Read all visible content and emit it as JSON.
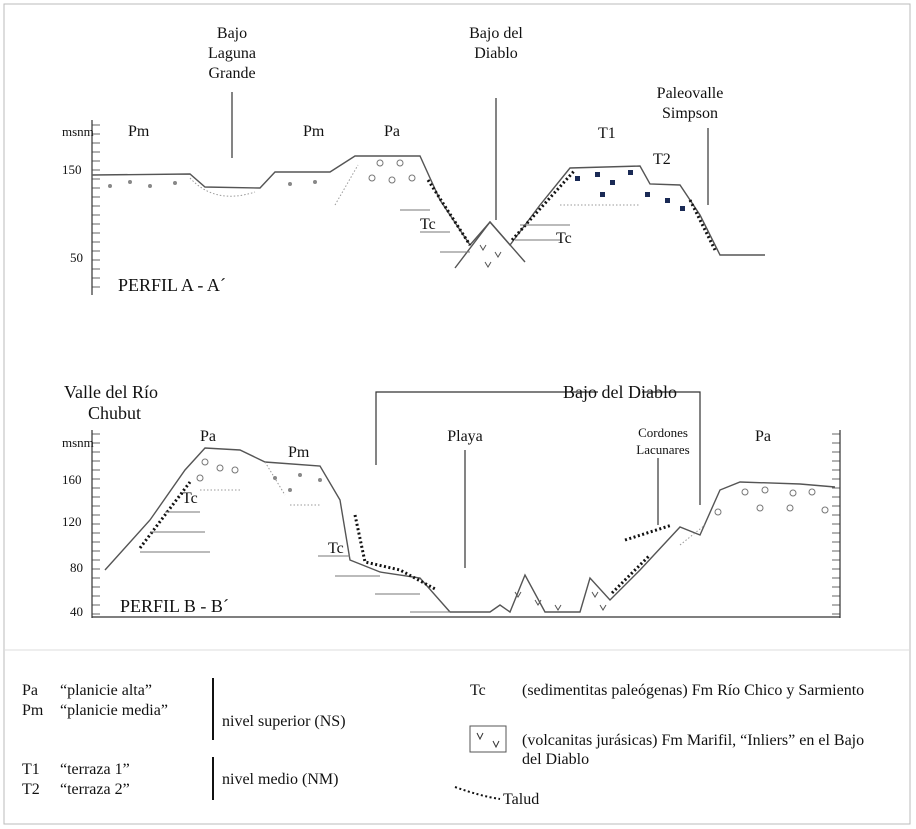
{
  "profile_a": {
    "title": "PERFIL A - A´",
    "axis_unit": "msnm",
    "ticks": [
      150,
      50
    ],
    "places": [
      [
        "Bajo",
        "Laguna",
        "Grande"
      ],
      [
        "Bajo del",
        "Diablo"
      ],
      [
        "Paleovalle",
        "Simpson"
      ]
    ],
    "units": [
      "Pm",
      "Pm",
      "Pa",
      "T1",
      "T2",
      "Tc",
      "Tc"
    ]
  },
  "profile_b": {
    "title": "PERFIL B - B´",
    "axis_unit": "msnm",
    "ticks": [
      160,
      120,
      80,
      40
    ],
    "places": [
      [
        "Valle del Río",
        "Chubut"
      ],
      [
        "Bajo del Diablo"
      ],
      [
        "Playa"
      ],
      [
        "Cordones",
        "Lacunares"
      ]
    ],
    "units": [
      "Pa",
      "Pm",
      "Tc",
      "Tc",
      "Pa"
    ]
  },
  "legend": {
    "levels": [
      {
        "items": [
          {
            "code": "Pa",
            "name": "“planicie alta”"
          },
          {
            "code": "Pm",
            "name": "“planicie media”"
          }
        ],
        "level": "nivel superior  (NS)"
      },
      {
        "items": [
          {
            "code": "T1",
            "name": "“terraza 1”"
          },
          {
            "code": "T2",
            "name": "“terraza  2”"
          }
        ],
        "level": "nivel  medio (NM)"
      }
    ],
    "units": [
      {
        "code": "Tc",
        "lines": [
          "(sedimentitas paleógenas) Fm Río Chico y Sarmiento"
        ]
      },
      {
        "lines": [
          "(volcanitas jurásicas) Fm Marifil, “Inliers” en el Bajo",
          "del Diablo"
        ]
      }
    ],
    "talud": "Talud"
  }
}
